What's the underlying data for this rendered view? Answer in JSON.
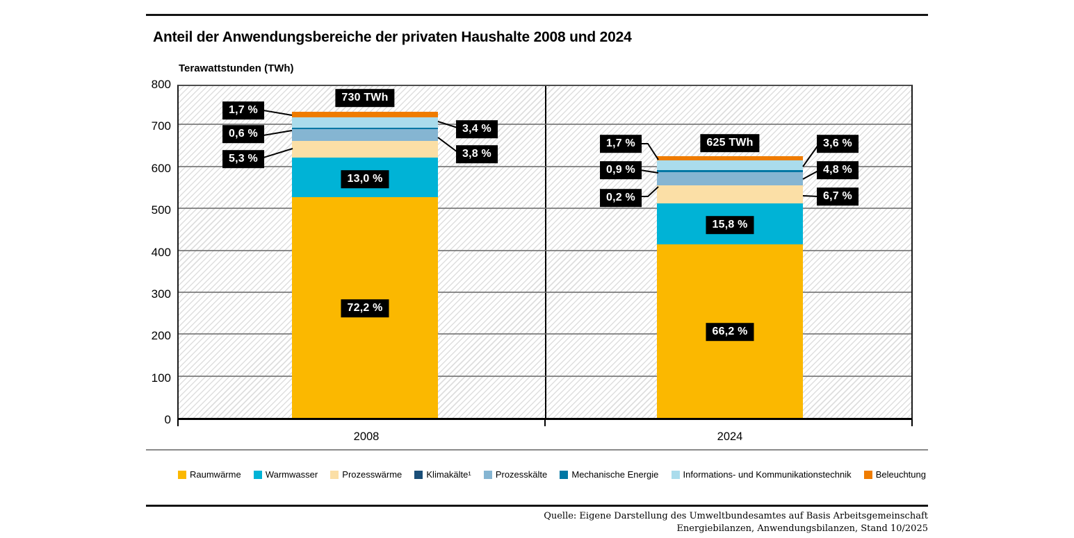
{
  "header": {
    "title": "Anteil der Anwendungsbereiche der privaten Haushalte 2008 und 2024"
  },
  "chart_data": {
    "type": "bar",
    "stacked": true,
    "title": "Anteil der Anwendungsbereiche der privaten Haushalte 2008 und 2024",
    "ylabel": "Terawattstunden (TWh)",
    "ylim": [
      0,
      800
    ],
    "yticks": [
      0,
      100,
      200,
      300,
      400,
      500,
      600,
      700,
      800
    ],
    "grid": "horizontal",
    "legend_position": "bottom",
    "categories": [
      "2008",
      "2024"
    ],
    "totals_twh": [
      730,
      625
    ],
    "total_labels": [
      "730 TWh",
      "625 TWh"
    ],
    "series": [
      {
        "name": "Raumwärme",
        "color": "#FBB800",
        "pct": [
          72.2,
          66.2
        ],
        "pct_labels": [
          "72,2 %",
          "66,2 %"
        ]
      },
      {
        "name": "Warmwasser",
        "color": "#00B3D6",
        "pct": [
          13.0,
          15.8
        ],
        "pct_labels": [
          "13,0 %",
          "15,8 %"
        ]
      },
      {
        "name": "Prozesswärme",
        "color": "#FBDFA6",
        "pct": [
          5.3,
          6.7
        ],
        "pct_labels": [
          "5,3 %",
          "6,7 %"
        ]
      },
      {
        "name": "Klimakälte¹",
        "color": "#1A4E78",
        "pct": [
          0.0,
          0.2
        ],
        "pct_labels": [
          "",
          "0,2 %"
        ]
      },
      {
        "name": "Prozesskälte",
        "color": "#85B5D2",
        "pct": [
          3.8,
          4.8
        ],
        "pct_labels": [
          "3,8 %",
          "4,8 %"
        ]
      },
      {
        "name": "Mechanische Energie",
        "color": "#0077A4",
        "pct": [
          0.6,
          0.9
        ],
        "pct_labels": [
          "0,6 %",
          "0,9 %"
        ]
      },
      {
        "name": "Informations- und Kommunikationstechnik",
        "color": "#AADCEC",
        "pct": [
          3.4,
          3.6
        ],
        "pct_labels": [
          "3,4 %",
          "3,6 %"
        ]
      },
      {
        "name": "Beleuchtung",
        "color": "#EF7C00",
        "pct": [
          1.7,
          1.7
        ],
        "pct_labels": [
          "1,7 %",
          "1,7 %"
        ]
      }
    ]
  },
  "footer": {
    "source_line1": "Quelle: Eigene Darstellung des Umweltbundesamtes auf Basis Arbeitsgemeinschaft",
    "source_line2": "Energiebilanzen, Anwendungsbilanzen, Stand 10/2025"
  }
}
